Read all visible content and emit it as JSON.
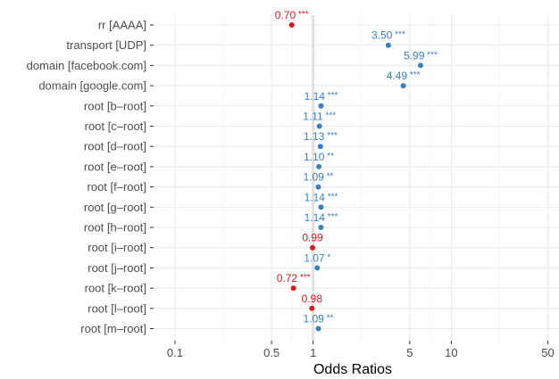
{
  "chart_data": {
    "type": "scatter",
    "title": "",
    "xlabel": "Odds Ratios",
    "ylabel": "",
    "x_scale": "log",
    "xlim": [
      0.07,
      62
    ],
    "x_ticks": [
      0.1,
      0.5,
      1,
      5,
      10,
      50
    ],
    "x_tick_labels": [
      "0.1",
      "0.5",
      "1",
      "5",
      "10",
      "50"
    ],
    "reference_line": 1,
    "grid": true,
    "colors": {
      "positive": "#3a7fbf",
      "negative": "#d7191c"
    },
    "points": [
      {
        "term": "rr [AAAA]",
        "value": 0.7,
        "label": "0.70",
        "stars": "***",
        "effect": "negative"
      },
      {
        "term": "transport [UDP]",
        "value": 3.5,
        "label": "3.50",
        "stars": "***",
        "effect": "positive"
      },
      {
        "term": "domain [facebook.com]",
        "value": 5.99,
        "label": "5.99",
        "stars": "***",
        "effect": "positive"
      },
      {
        "term": "domain [google.com]",
        "value": 4.49,
        "label": "4.49",
        "stars": "***",
        "effect": "positive"
      },
      {
        "term": "root [b–root]",
        "value": 1.14,
        "label": "1.14",
        "stars": "***",
        "effect": "positive"
      },
      {
        "term": "root [c–root]",
        "value": 1.11,
        "label": "1.11",
        "stars": "***",
        "effect": "positive"
      },
      {
        "term": "root [d–root]",
        "value": 1.13,
        "label": "1.13",
        "stars": "***",
        "effect": "positive"
      },
      {
        "term": "root [e–root]",
        "value": 1.1,
        "label": "1.10",
        "stars": "**",
        "effect": "positive"
      },
      {
        "term": "root [f–root]",
        "value": 1.09,
        "label": "1.09",
        "stars": "**",
        "effect": "positive"
      },
      {
        "term": "root [g–root]",
        "value": 1.14,
        "label": "1.14",
        "stars": "***",
        "effect": "positive"
      },
      {
        "term": "root [h–root]",
        "value": 1.14,
        "label": "1.14",
        "stars": "***",
        "effect": "positive"
      },
      {
        "term": "root [i–root]",
        "value": 0.99,
        "label": "0.99",
        "stars": "",
        "effect": "negative"
      },
      {
        "term": "root [j–root]",
        "value": 1.07,
        "label": "1.07",
        "stars": "*",
        "effect": "positive"
      },
      {
        "term": "root [k–root]",
        "value": 0.72,
        "label": "0.72",
        "stars": "***",
        "effect": "negative"
      },
      {
        "term": "root [l–root]",
        "value": 0.98,
        "label": "0.98",
        "stars": "",
        "effect": "negative"
      },
      {
        "term": "root [m–root]",
        "value": 1.09,
        "label": "1.09",
        "stars": "**",
        "effect": "positive"
      }
    ]
  }
}
